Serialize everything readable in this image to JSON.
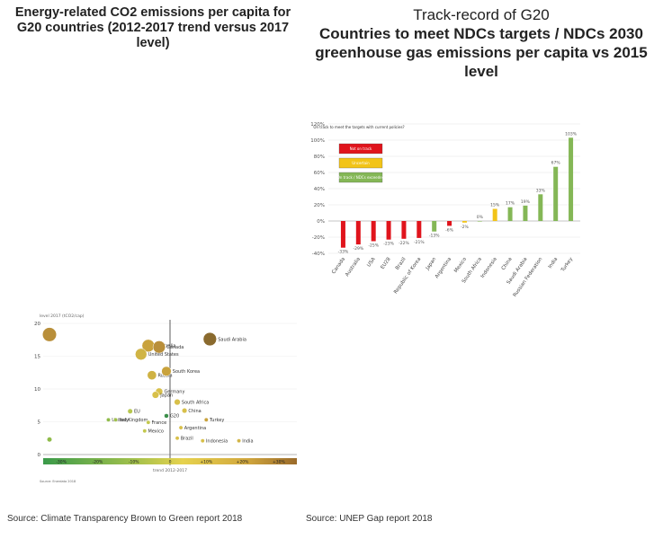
{
  "left_panel": {
    "title": "Energy-related CO2 emissions per capita for\nG20 countries (2012-2017 trend versus 2017\nlevel)",
    "source": "Source: Climate Transparency Brown to Green report  2018"
  },
  "right_panel": {
    "title_line1": "Track-record of G20",
    "title_rest": "Countries to meet NDCs targets / NDCs 2030\ngreenhouse gas emissions per capita vs 2015\nlevel",
    "source": "Source: UNEP Gap report 2018"
  },
  "chart_data": [
    {
      "type": "scatter",
      "ylabel": "level 2017 (tCO2/cap)",
      "xlabel": "trend 2012-2017",
      "ylim": [
        0,
        20
      ],
      "xlim": [
        -35,
        35
      ],
      "yticks": [
        "0",
        "5",
        "10",
        "15",
        "20"
      ],
      "color_bar_labels": [
        "-30%",
        "-20%",
        "-10%",
        "0",
        "+10%",
        "+20%",
        "+30%"
      ],
      "footer": "Source: Enerdata 2018",
      "grid": true,
      "points": [
        {
          "label": "Australia",
          "x": -6,
          "y": 16.6,
          "color": "#c9a23c"
        },
        {
          "label": "Canada",
          "x": -3,
          "y": 16.4,
          "color": "#b98f3a"
        },
        {
          "label": "Saudi Arabia",
          "x": 11,
          "y": 17.6,
          "color": "#8a6a2e"
        },
        {
          "label": "United States",
          "x": -8,
          "y": 15.3,
          "color": "#d0b445"
        },
        {
          "label": "Russia",
          "x": -5,
          "y": 12.1,
          "color": "#cfb244"
        },
        {
          "label": "South Korea",
          "x": -1,
          "y": 12.7,
          "color": "#c9a23c"
        },
        {
          "label": "Germany",
          "x": -3,
          "y": 9.6,
          "color": "#d8c04a"
        },
        {
          "label": "Japan",
          "x": -4,
          "y": 9.1,
          "color": "#d8c04a"
        },
        {
          "label": "South Africa",
          "x": 2,
          "y": 8.0,
          "color": "#d8c04a"
        },
        {
          "label": "EU",
          "x": -11,
          "y": 6.6,
          "color": "#b7c74e"
        },
        {
          "label": "China",
          "x": 4,
          "y": 6.7,
          "color": "#d8c04a"
        },
        {
          "label": "G20",
          "x": -1,
          "y": 5.9,
          "color": "#3b8f4a"
        },
        {
          "label": "Turkey",
          "x": 10,
          "y": 5.3,
          "color": "#c9a23c"
        },
        {
          "label": "United Kingdom",
          "x": -17,
          "y": 5.3,
          "color": "#8fbb4a"
        },
        {
          "label": "Italy",
          "x": -15,
          "y": 5.3,
          "color": "#9fc04c"
        },
        {
          "label": "France",
          "x": -6,
          "y": 4.9,
          "color": "#c3c84e"
        },
        {
          "label": "Argentina",
          "x": 3,
          "y": 4.1,
          "color": "#d8c04a"
        },
        {
          "label": "Mexico",
          "x": -7,
          "y": 3.6,
          "color": "#c3c84e"
        },
        {
          "label": "Indonesia",
          "x": 9,
          "y": 2.1,
          "color": "#d8c04a"
        },
        {
          "label": "India",
          "x": 19,
          "y": 2.1,
          "color": "#d2b548"
        },
        {
          "label": "Brazil",
          "x": 2,
          "y": 2.5,
          "color": "#d8c04a"
        }
      ]
    },
    {
      "type": "bar",
      "ylim": [
        -40,
        120
      ],
      "yticks": [
        "-40%",
        "-20%",
        "0%",
        "20%",
        "40%",
        "60%",
        "80%",
        "100%",
        "120%"
      ],
      "legend_title": "On track to meet the targets with current policies?",
      "legend": [
        {
          "label": "Not on track",
          "color": "#e0141c"
        },
        {
          "label": "Uncertain",
          "color": "#f2c418"
        },
        {
          "label": "On track / NDCs exceeded",
          "color": "#84b756"
        }
      ],
      "categories": [
        "Canada",
        "Australia",
        "USA",
        "EU28",
        "Brazil",
        "Republic of Korea",
        "Japan",
        "Argentina",
        "Mexico",
        "South Africa",
        "Indonesia",
        "China",
        "Saudi Arabia",
        "Russian Federation",
        "India",
        "Turkey"
      ],
      "values": [
        -33,
        -29,
        -25,
        -23,
        -22,
        -21,
        -13,
        -6,
        -2,
        0,
        15,
        17,
        19,
        33,
        67,
        103
      ],
      "value_labels": [
        "-33%",
        "-29%",
        "-25%",
        "-23%",
        "-22%",
        "-21%",
        "-13%",
        "-6%",
        "-2%",
        "0%",
        "15%",
        "17%",
        "19%",
        "33%",
        "67%",
        "103%"
      ],
      "colors": [
        "#e0141c",
        "#e0141c",
        "#e0141c",
        "#e0141c",
        "#e0141c",
        "#e0141c",
        "#84b756",
        "#e0141c",
        "#f2c418",
        "#84b756",
        "#f2c418",
        "#84b756",
        "#84b756",
        "#84b756",
        "#84b756",
        "#84b756"
      ]
    }
  ]
}
